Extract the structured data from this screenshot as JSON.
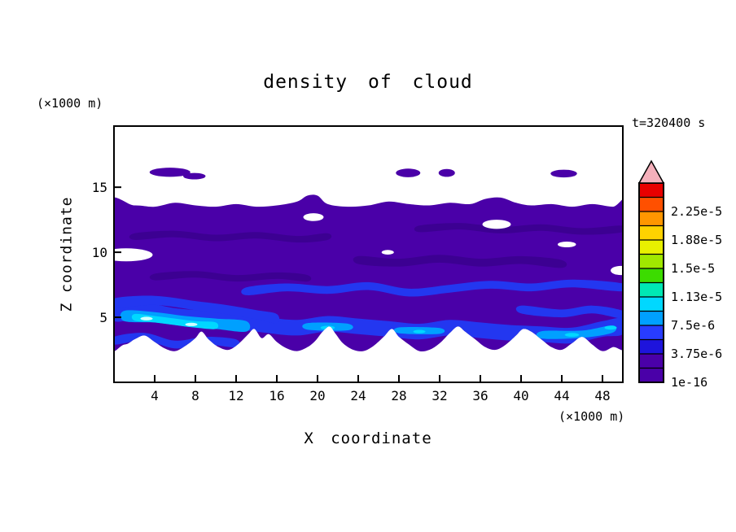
{
  "chart_data": {
    "type": "heatmap",
    "title": "density of cloud",
    "timestamp": "t=320400 s",
    "xlabel": "X coordinate",
    "ylabel": "Z coordinate",
    "x_unit": "(×1000 m)",
    "y_unit": "(×1000 m)",
    "xlim": [
      0,
      50
    ],
    "ylim": [
      0,
      19.7
    ],
    "xticks": [
      4,
      8,
      12,
      16,
      20,
      24,
      28,
      32,
      36,
      40,
      44,
      48
    ],
    "yticks": [
      5,
      10,
      15
    ],
    "grid": false,
    "legend_position": "right-colorbar",
    "colorbar": {
      "segments": [
        "#4a00a8",
        "#4a00a8",
        "#1e14dc",
        "#283cff",
        "#00a0ff",
        "#00d8ff",
        "#00e8b4",
        "#3cdc00",
        "#a0e800",
        "#e8f000",
        "#ffd200",
        "#ff9600",
        "#ff5000",
        "#e80000"
      ],
      "arrow_color": "#f5b0bb",
      "labels": [
        {
          "text": "1e-16",
          "boundary": 0
        },
        {
          "text": "3.75e-6",
          "boundary": 2
        },
        {
          "text": "7.5e-6",
          "boundary": 4
        },
        {
          "text": "1.13e-5",
          "boundary": 6
        },
        {
          "text": "1.5e-5",
          "boundary": 8
        },
        {
          "text": "1.88e-5",
          "boundary": 10
        },
        {
          "text": "2.25e-5",
          "boundary": 12
        }
      ]
    },
    "palette": {
      "cloud": "#4a00a8",
      "cloud_dark": "#3c0092",
      "blue": "#2337f0",
      "sky": "#00a0ff",
      "cyan": "#00d8ff",
      "bright": "#ccffff",
      "clear": "#ffffff"
    },
    "field": {
      "cloud_outline": [
        [
          -1,
          13.4
        ],
        [
          2,
          13.6
        ],
        [
          4,
          13.5
        ],
        [
          6,
          13.8
        ],
        [
          8,
          13.6
        ],
        [
          10,
          13.5
        ],
        [
          12,
          13.7
        ],
        [
          14,
          13.5
        ],
        [
          16,
          13.6
        ],
        [
          18,
          13.9
        ],
        [
          19,
          14.35
        ],
        [
          20,
          14.35
        ],
        [
          21,
          13.7
        ],
        [
          23,
          13.5
        ],
        [
          25,
          13.6
        ],
        [
          27,
          13.9
        ],
        [
          29,
          13.7
        ],
        [
          31,
          13.6
        ],
        [
          33,
          13.8
        ],
        [
          35,
          13.7
        ],
        [
          36.5,
          14.1
        ],
        [
          38,
          14.2
        ],
        [
          39.5,
          13.8
        ],
        [
          41,
          13.6
        ],
        [
          43,
          13.7
        ],
        [
          45,
          13.5
        ],
        [
          47,
          13.7
        ],
        [
          49,
          13.5
        ],
        [
          51,
          13.6
        ],
        [
          51,
          3.4
        ],
        [
          49,
          2.7
        ],
        [
          48,
          2.4
        ],
        [
          47,
          2.9
        ],
        [
          46,
          3.5
        ],
        [
          45,
          3.0
        ],
        [
          44,
          2.5
        ],
        [
          43,
          2.7
        ],
        [
          42,
          3.3
        ],
        [
          41,
          3.9
        ],
        [
          40.2,
          4.1
        ],
        [
          39.5,
          3.6
        ],
        [
          38.5,
          2.9
        ],
        [
          37.5,
          2.5
        ],
        [
          36.5,
          2.7
        ],
        [
          35.5,
          3.3
        ],
        [
          34.5,
          3.9
        ],
        [
          33.8,
          4.3
        ],
        [
          33,
          3.8
        ],
        [
          32,
          3.0
        ],
        [
          31,
          2.5
        ],
        [
          30,
          2.4
        ],
        [
          29,
          2.9
        ],
        [
          28,
          3.5
        ],
        [
          27.3,
          4.1
        ],
        [
          26.5,
          3.5
        ],
        [
          25.5,
          2.8
        ],
        [
          24.5,
          2.4
        ],
        [
          23.5,
          2.5
        ],
        [
          22.5,
          3.0
        ],
        [
          21.8,
          3.7
        ],
        [
          21.2,
          4.3
        ],
        [
          20.5,
          3.9
        ],
        [
          19.8,
          3.2
        ],
        [
          19,
          2.7
        ],
        [
          18,
          2.4
        ],
        [
          17,
          2.6
        ],
        [
          16,
          3.1
        ],
        [
          15.2,
          3.7
        ],
        [
          14.5,
          3.4
        ],
        [
          13.8,
          4.1
        ],
        [
          13.2,
          3.7
        ],
        [
          12.3,
          3.0
        ],
        [
          11.3,
          2.5
        ],
        [
          10.3,
          2.7
        ],
        [
          9.3,
          3.3
        ],
        [
          8.6,
          3.9
        ],
        [
          8,
          3.4
        ],
        [
          7,
          2.8
        ],
        [
          6,
          2.4
        ],
        [
          5,
          2.6
        ],
        [
          4,
          3.1
        ],
        [
          3,
          3.6
        ],
        [
          2,
          3.3
        ],
        [
          1,
          2.9
        ],
        [
          -1,
          3.1
        ]
      ],
      "top_patches": [
        [
          5.5,
          16.15,
          2.0,
          0.35
        ],
        [
          7.9,
          15.85,
          1.1,
          0.25
        ],
        [
          28.9,
          16.1,
          1.2,
          0.33
        ],
        [
          32.7,
          16.1,
          0.8,
          0.3
        ],
        [
          44.2,
          16.05,
          1.3,
          0.3
        ]
      ],
      "white_holes": [
        [
          19.6,
          12.7,
          1.0,
          0.3
        ],
        [
          37.6,
          12.15,
          1.4,
          0.35
        ],
        [
          49.8,
          8.6,
          1.0,
          0.35
        ],
        [
          1.2,
          9.8,
          2.6,
          0.5
        ],
        [
          26.9,
          10.0,
          0.6,
          0.18
        ],
        [
          44.5,
          10.6,
          0.9,
          0.22
        ]
      ],
      "dark_streaks": [
        {
          "pts": [
            [
              2,
              11.2
            ],
            [
              6,
              11.4
            ],
            [
              10,
              11.1
            ],
            [
              14,
              11.3
            ],
            [
              18,
              11.0
            ],
            [
              21,
              11.2
            ]
          ],
          "w": 0.25
        },
        {
          "pts": [
            [
              24,
              9.4
            ],
            [
              28,
              9.2
            ],
            [
              32,
              9.5
            ],
            [
              36,
              9.2
            ],
            [
              40,
              9.4
            ],
            [
              44,
              9.1
            ]
          ],
          "w": 0.3
        },
        {
          "pts": [
            [
              4,
              8.1
            ],
            [
              8,
              8.3
            ],
            [
              12,
              8.0
            ],
            [
              16,
              8.2
            ],
            [
              19,
              8.0
            ]
          ],
          "w": 0.25
        },
        {
          "pts": [
            [
              30,
              11.8
            ],
            [
              34,
              12.0
            ],
            [
              38,
              11.7
            ],
            [
              42,
              11.9
            ],
            [
              46,
              11.6
            ],
            [
              50,
              11.8
            ]
          ],
          "w": 0.25
        }
      ],
      "ribbons": [
        {
          "color": "blue",
          "w": 0.3,
          "pts": [
            [
              13,
              7.0
            ],
            [
              17,
              7.3
            ],
            [
              21,
              7.1
            ],
            [
              25,
              7.4
            ],
            [
              29,
              6.9
            ],
            [
              33,
              7.2
            ],
            [
              37,
              7.5
            ],
            [
              41,
              7.3
            ],
            [
              45,
              7.6
            ],
            [
              50,
              7.3
            ]
          ]
        },
        {
          "color": "blue",
          "w": 0.6,
          "pts": [
            [
              0,
              5.3
            ],
            [
              3,
              5.5
            ],
            [
              6,
              5.1
            ],
            [
              9,
              4.9
            ],
            [
              12,
              4.7
            ],
            [
              15,
              4.4
            ],
            [
              18,
              4.2
            ],
            [
              21,
              4.5
            ],
            [
              24,
              4.3
            ],
            [
              27,
              4.1
            ],
            [
              30,
              3.9
            ],
            [
              33,
              4.2
            ],
            [
              36,
              4.0
            ],
            [
              39,
              3.8
            ],
            [
              42,
              3.7
            ],
            [
              45,
              3.6
            ],
            [
              48,
              4.1
            ],
            [
              50,
              4.3
            ]
          ]
        },
        {
          "color": "blue",
          "w": 0.35,
          "pts": [
            [
              0,
              6.1
            ],
            [
              4,
              6.3
            ],
            [
              8,
              5.9
            ],
            [
              11,
              5.6
            ],
            [
              14,
              5.2
            ],
            [
              16,
              4.9
            ]
          ]
        },
        {
          "color": "blue",
          "w": 0.3,
          "pts": [
            [
              0,
              3.2
            ],
            [
              3,
              3.5
            ],
            [
              6,
              2.9
            ],
            [
              9,
              3.2
            ],
            [
              12,
              3.0
            ]
          ]
        },
        {
          "color": "blue",
          "w": 0.3,
          "pts": [
            [
              40,
              5.6
            ],
            [
              44,
              5.3
            ],
            [
              47,
              5.6
            ],
            [
              50,
              5.2
            ]
          ]
        },
        {
          "color": "sky",
          "w": 0.4,
          "pts": [
            [
              1,
              5.1
            ],
            [
              4,
              5.0
            ],
            [
              7,
              4.7
            ],
            [
              10,
              4.5
            ],
            [
              13,
              4.3
            ]
          ]
        },
        {
          "color": "sky",
          "w": 0.25,
          "pts": [
            [
              19,
              4.3
            ],
            [
              23,
              4.25
            ]
          ]
        },
        {
          "color": "sky",
          "w": 0.22,
          "pts": [
            [
              28,
              4.0
            ],
            [
              32,
              3.95
            ]
          ]
        },
        {
          "color": "sky",
          "w": 0.28,
          "pts": [
            [
              42,
              3.65
            ],
            [
              46,
              3.7
            ],
            [
              49,
              4.1
            ]
          ]
        },
        {
          "color": "cyan",
          "w": 0.25,
          "pts": [
            [
              2,
              5.0
            ],
            [
              4,
              4.85
            ],
            [
              6,
              4.65
            ],
            [
              8,
              4.45
            ],
            [
              10,
              4.35
            ]
          ]
        }
      ],
      "spots": [
        {
          "color": "cyan",
          "e": [
            21,
            4.2,
            0.7,
            0.15
          ]
        },
        {
          "color": "cyan",
          "e": [
            30,
            3.9,
            0.6,
            0.13
          ]
        },
        {
          "color": "cyan",
          "e": [
            45,
            3.65,
            0.7,
            0.15
          ]
        },
        {
          "color": "cyan",
          "e": [
            48.8,
            4.2,
            0.6,
            0.15
          ]
        },
        {
          "color": "bright",
          "e": [
            3.2,
            4.9,
            0.6,
            0.14
          ]
        },
        {
          "color": "bright",
          "e": [
            7.6,
            4.45,
            0.6,
            0.13
          ]
        }
      ]
    }
  }
}
